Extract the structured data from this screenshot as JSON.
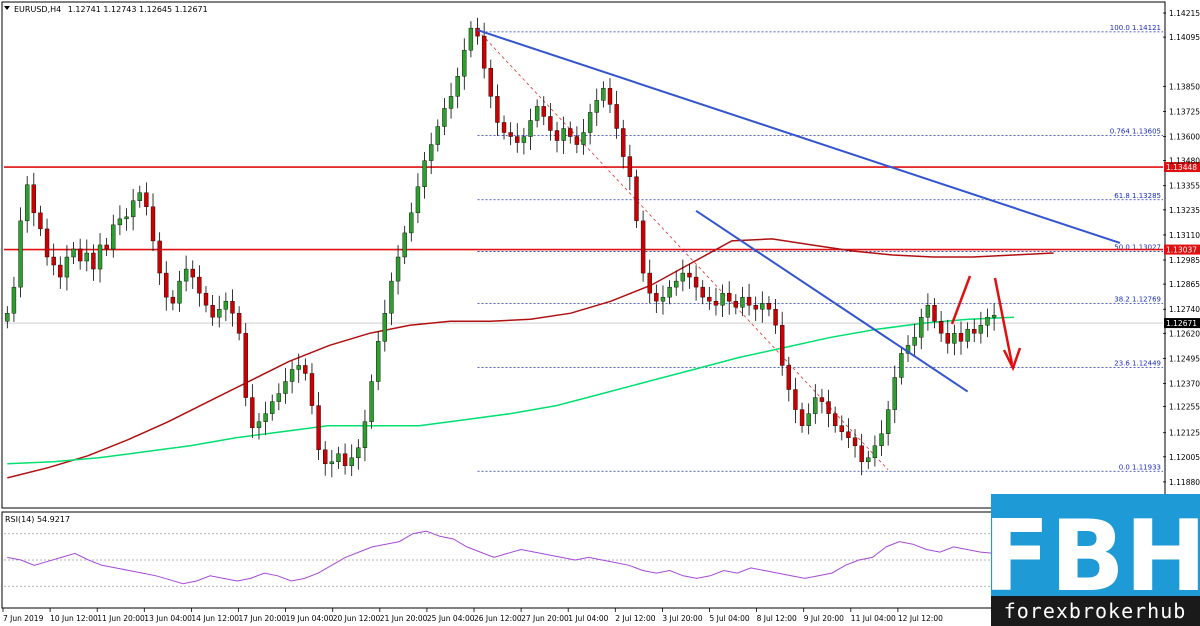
{
  "chart_data": {
    "type": "candlestick",
    "header": {
      "symbol_label": "EURUSD,H4",
      "ohlc": "1.12741 1.12743 1.12645 1.12671"
    },
    "y_range": [
      1.1176,
      1.1426
    ],
    "y_ticks": [
      "1.14215",
      "1.14095",
      "1.13850",
      "1.13725",
      "1.13600",
      "1.13480",
      "1.13355",
      "1.13235",
      "1.13110",
      "1.12985",
      "1.12865",
      "1.12740",
      "1.12620",
      "1.12495",
      "1.12370",
      "1.12255",
      "1.12125",
      "1.12005",
      "1.11880"
    ],
    "x_ticks": [
      "7 Jun 2019",
      "10 Jun 12:00",
      "11 Jun 20:00",
      "13 Jun 04:00",
      "14 Jun 12:00",
      "17 Jun 20:00",
      "19 Jun 04:00",
      "20 Jun 12:00",
      "21 Jun 20:00",
      "25 Jun 04:00",
      "26 Jun 12:00",
      "27 Jun 20:00",
      "1 Jul 04:00",
      "2 Jul 12:00",
      "3 Jul 20:00",
      "5 Jul 04:00",
      "8 Jul 12:00",
      "9 Jul 20:00",
      "11 Jul 04:00",
      "12 Jul 12:00"
    ],
    "closes": [
      1.1272,
      1.1285,
      1.1318,
      1.1336,
      1.1322,
      1.1314,
      1.13,
      1.1296,
      1.129,
      1.13,
      1.1304,
      1.1298,
      1.1302,
      1.1294,
      1.1306,
      1.1304,
      1.1316,
      1.1319,
      1.132,
      1.1328,
      1.1332,
      1.1325,
      1.1308,
      1.1292,
      1.128,
      1.1277,
      1.1288,
      1.1294,
      1.129,
      1.1282,
      1.1276,
      1.127,
      1.1274,
      1.1278,
      1.1272,
      1.1262,
      1.123,
      1.1215,
      1.1218,
      1.1222,
      1.1228,
      1.1232,
      1.1238,
      1.1244,
      1.1246,
      1.1242,
      1.1226,
      1.1204,
      1.1197,
      1.1198,
      1.1202,
      1.1196,
      1.12,
      1.1205,
      1.1218,
      1.1238,
      1.1258,
      1.1272,
      1.1288,
      1.13,
      1.1312,
      1.1322,
      1.1335,
      1.1348,
      1.1356,
      1.1365,
      1.1374,
      1.138,
      1.139,
      1.1403,
      1.1414,
      1.141,
      1.1394,
      1.138,
      1.1367,
      1.1362,
      1.136,
      1.1357,
      1.136,
      1.1368,
      1.1375,
      1.137,
      1.1363,
      1.1358,
      1.1364,
      1.136,
      1.1356,
      1.1362,
      1.1372,
      1.1378,
      1.1384,
      1.1376,
      1.1364,
      1.135,
      1.134,
      1.1318,
      1.1292,
      1.1282,
      1.1278,
      1.128,
      1.1285,
      1.1288,
      1.1292,
      1.129,
      1.1285,
      1.128,
      1.1278,
      1.1276,
      1.1282,
      1.1278,
      1.1275,
      1.128,
      1.1276,
      1.1274,
      1.1277,
      1.1274,
      1.1266,
      1.1246,
      1.1234,
      1.1224,
      1.1216,
      1.1222,
      1.123,
      1.1228,
      1.1222,
      1.1216,
      1.1213,
      1.121,
      1.1206,
      1.1198,
      1.12,
      1.1206,
      1.1212,
      1.1224,
      1.124,
      1.1252,
      1.1256,
      1.126,
      1.127,
      1.1276,
      1.1268,
      1.1262,
      1.1257,
      1.1262,
      1.1258,
      1.1264,
      1.1262,
      1.1266,
      1.127,
      1.1271
    ],
    "ema_slow": {
      "color": "#b01010",
      "values": [
        1.119,
        1.1195,
        1.1201,
        1.1209,
        1.1218,
        1.1228,
        1.1238,
        1.1248,
        1.1256,
        1.1262,
        1.1266,
        1.1268,
        1.1268,
        1.1269,
        1.1272,
        1.1278,
        1.1286,
        1.1297,
        1.1308,
        1.1309,
        1.1306,
        1.1303,
        1.1301,
        1.13,
        1.13,
        1.1301,
        1.1302
      ]
    },
    "ema_fast": {
      "color": "#00e070",
      "values": [
        1.1197,
        1.1198,
        1.12,
        1.1203,
        1.1206,
        1.121,
        1.1213,
        1.1216,
        1.1216,
        1.1216,
        1.1219,
        1.1222,
        1.1226,
        1.1232,
        1.1238,
        1.1244,
        1.125,
        1.1255,
        1.126,
        1.1264,
        1.1267,
        1.1269,
        1.127
      ]
    },
    "horizontal_levels": [
      {
        "price": 1.13448,
        "label": "1.13448",
        "color": "#e01010"
      },
      {
        "price": 1.13037,
        "label": "1.13037",
        "color": "#e01010"
      }
    ],
    "current_price": {
      "price": 1.12671,
      "label": "1.12671"
    },
    "fibonacci": [
      {
        "price": 1.14121,
        "label": "100.0 1.14121"
      },
      {
        "price": 1.13605,
        "label": "0.764 1.13605"
      },
      {
        "price": 1.13285,
        "label": "61.8 1.13285"
      },
      {
        "price": 1.13027,
        "label": "50.0 1.13027"
      },
      {
        "price": 1.12769,
        "label": "38.2 1.12769"
      },
      {
        "price": 1.12449,
        "label": "23.6 1.12449"
      },
      {
        "price": 1.11933,
        "label": "0.0 1.11933"
      }
    ],
    "trendlines": [
      {
        "from": {
          "bar": 71,
          "price": 1.1413
        },
        "to": {
          "bar": 168,
          "price": 1.1307
        },
        "color": "#3355d0"
      },
      {
        "from": {
          "bar": 104,
          "price": 1.1323
        },
        "to": {
          "bar": 145,
          "price": 1.1233
        },
        "color": "#3355d0"
      }
    ],
    "rsi": {
      "label": "RSI(14) 54.9217",
      "values": [
        52,
        50,
        46,
        49,
        52,
        55,
        50,
        46,
        44,
        42,
        40,
        38,
        35,
        32,
        34,
        38,
        36,
        34,
        36,
        40,
        38,
        34,
        36,
        40,
        46,
        52,
        56,
        60,
        62,
        64,
        70,
        72,
        68,
        66,
        60,
        56,
        52,
        55,
        58,
        56,
        54,
        52,
        50,
        52,
        50,
        48,
        46,
        42,
        40,
        42,
        38,
        36,
        38,
        42,
        40,
        44,
        42,
        40,
        38,
        36,
        38,
        40,
        46,
        50,
        52,
        60,
        64,
        62,
        58,
        56,
        60,
        58,
        56,
        55
      ]
    }
  },
  "logo": {
    "letters": "FBH",
    "caption": "forexbrokerhub",
    "color": "#1e9ad6"
  }
}
